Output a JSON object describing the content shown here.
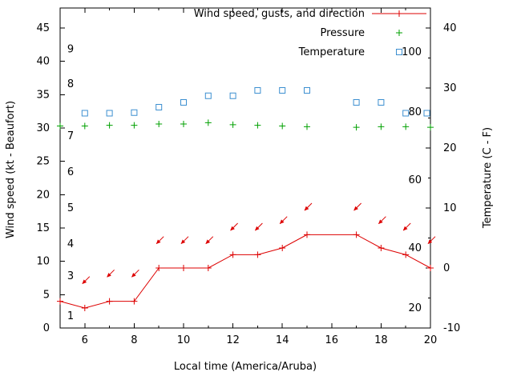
{
  "chart_data": {
    "type": "line",
    "title": "",
    "xlabel": "Local time (America/Aruba)",
    "ylabel": "Wind speed (kt - Beaufort)",
    "y2label": "Temperature (C - F)",
    "x_range": [
      5,
      20
    ],
    "x_major_ticks": [
      6,
      8,
      10,
      12,
      14,
      16,
      18,
      20
    ],
    "x_minor_ticks": [
      5,
      7,
      9,
      11,
      13,
      15,
      17,
      19
    ],
    "y_left_ticks": [
      0,
      5,
      10,
      15,
      20,
      25,
      30,
      35,
      40,
      45
    ],
    "y_left_max": 48,
    "y_right_ticks": [
      -10,
      0,
      10,
      20,
      30,
      40
    ],
    "y_right_minor_ticks": [
      -5,
      5,
      15,
      25,
      35
    ],
    "beaufort_scale_labels": [
      {
        "label": "1",
        "kt": 1.8
      },
      {
        "label": "3",
        "kt": 7.8
      },
      {
        "label": "4",
        "kt": 12.6
      },
      {
        "label": "5",
        "kt": 18
      },
      {
        "label": "6",
        "kt": 23.4
      },
      {
        "label": "7",
        "kt": 28.8
      },
      {
        "label": "8",
        "kt": 36.6
      },
      {
        "label": "9",
        "kt": 41.8
      }
    ],
    "inner_right_scale_labels": [
      {
        "label": "20",
        "pos": 3
      },
      {
        "label": "40",
        "pos": 12
      },
      {
        "label": "60",
        "pos": 22.2
      },
      {
        "label": "80",
        "pos": 32.4
      },
      {
        "label": "100",
        "pos": 41.4
      }
    ],
    "colors": {
      "wind": "#dd0000",
      "pressure": "#00a000",
      "temperature": "#3c8fd0",
      "axis": "#000000"
    },
    "legend": [
      {
        "label": "Wind speed, gusts, and direction",
        "key": "red-line-plus"
      },
      {
        "label": "Pressure",
        "key": "green-plus"
      },
      {
        "label": "Temperature",
        "key": "blue-open-square"
      }
    ],
    "series": {
      "wind_speed": {
        "x": [
          5,
          6,
          7,
          8,
          9,
          10,
          11,
          12,
          13,
          14,
          15,
          16,
          17,
          18,
          19,
          20
        ],
        "kt": [
          4,
          3,
          4,
          4,
          9,
          9,
          9,
          11,
          11,
          12,
          14,
          14,
          14,
          12,
          11,
          9
        ],
        "marker_at": [
          5,
          6,
          7,
          8,
          9,
          10,
          11,
          12,
          13,
          14,
          15,
          17,
          18,
          19,
          20
        ]
      },
      "gusts": {
        "x": [
          6,
          7,
          8,
          9,
          10,
          11,
          12,
          13,
          14,
          15,
          17,
          18,
          19,
          20
        ],
        "kt": [
          7,
          8,
          8,
          13,
          13,
          13,
          15,
          15,
          16,
          18,
          18,
          16,
          15,
          13
        ],
        "arrow_points_to": "southwest"
      },
      "pressure": {
        "x": [
          5,
          6,
          7,
          8,
          9,
          10,
          11,
          12,
          13,
          14,
          15,
          17,
          18,
          19,
          20
        ],
        "values": [
          30.3,
          30.3,
          30.4,
          30.4,
          30.6,
          30.6,
          30.8,
          30.5,
          30.4,
          30.3,
          30.2,
          30.1,
          30.2,
          30.2,
          30.1
        ]
      },
      "temperature_c": {
        "x": [
          6,
          7,
          8,
          9,
          10,
          11,
          12,
          13,
          14,
          15,
          17,
          18,
          19,
          20
        ],
        "values": [
          25.8,
          25.8,
          25.9,
          26.8,
          27.6,
          28.7,
          28.7,
          29.6,
          29.6,
          29.6,
          27.6,
          27.6,
          25.8,
          25.8
        ]
      }
    }
  }
}
